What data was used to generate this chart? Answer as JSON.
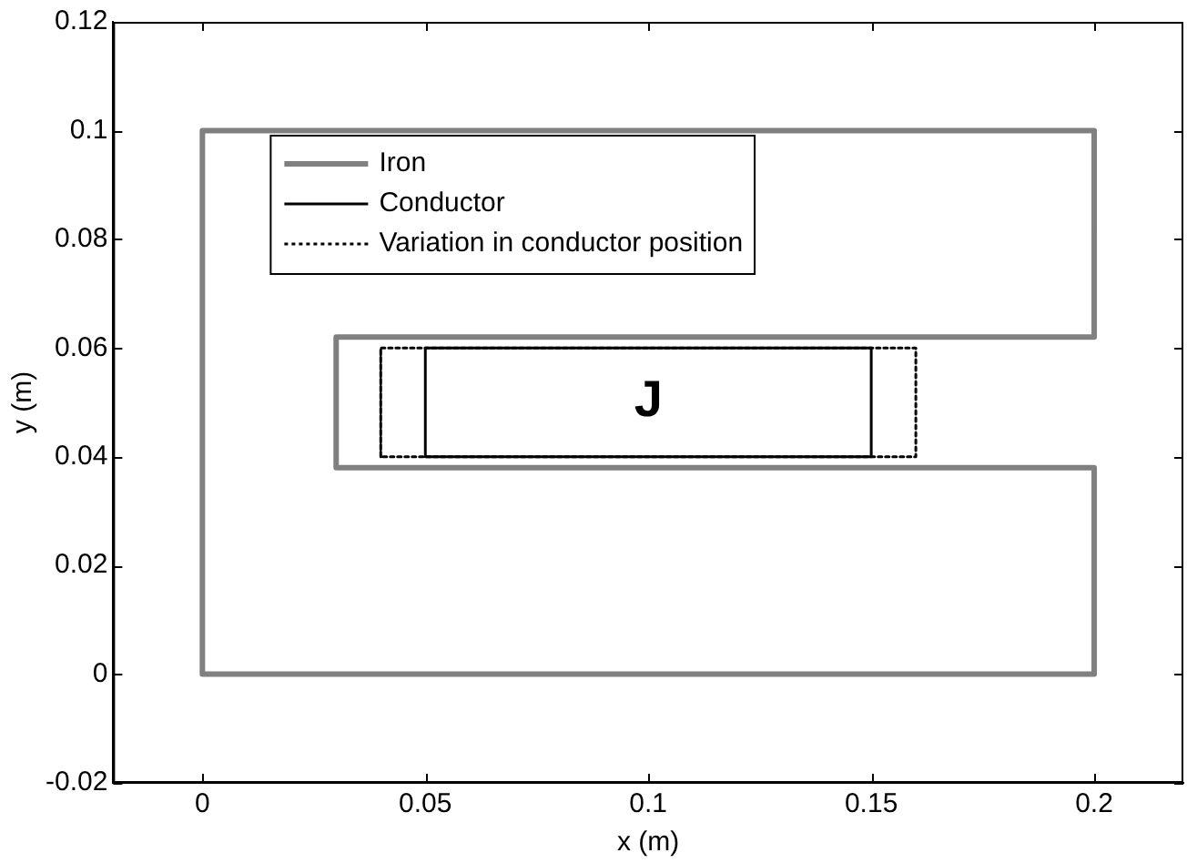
{
  "chart_data": {
    "type": "line",
    "xlabel": "x (m)",
    "ylabel": "y (m)",
    "xlim": [
      -0.02,
      0.22
    ],
    "xticks": [
      0,
      0.05,
      0.1,
      0.15,
      0.2
    ],
    "ylim": [
      -0.02,
      0.12
    ],
    "yticks": [
      -0.02,
      0,
      0.02,
      0.04,
      0.06,
      0.08,
      0.1,
      0.12
    ],
    "grid": false,
    "legend": "top left",
    "marker": "none",
    "series": [
      {
        "name": "Iron",
        "color": "#808080",
        "line_style": "solid",
        "x": [
          0,
          0,
          0.2,
          0.2,
          0.03,
          0.03,
          0.2,
          0.2,
          0,
          0
        ],
        "values": [
          0,
          0.1,
          0.1,
          0.062,
          0.062,
          0.038,
          0.038,
          0,
          0,
          0.1
        ]
      },
      {
        "name": "Conductor",
        "color": "#000000",
        "line_style": "solid",
        "x": [
          0.05,
          0.05,
          0.15,
          0.15,
          0.05,
          0.05
        ],
        "values": [
          0.04,
          0.06,
          0.06,
          0.04,
          0.04,
          0.06
        ]
      },
      {
        "name": "Variation in conductor position",
        "color": "#000000",
        "line_style": "dotted",
        "x": [
          0.04,
          0.04,
          0.16,
          0.16,
          0.04,
          0.04
        ],
        "values": [
          0.04,
          0.06,
          0.06,
          0.04,
          0.04,
          0.06
        ]
      }
    ],
    "annotations": [
      "J"
    ]
  }
}
